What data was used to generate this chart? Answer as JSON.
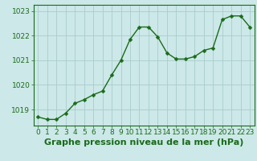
{
  "x": [
    0,
    1,
    2,
    3,
    4,
    5,
    6,
    7,
    8,
    9,
    10,
    11,
    12,
    13,
    14,
    15,
    16,
    17,
    18,
    19,
    20,
    21,
    22,
    23
  ],
  "y": [
    1018.7,
    1018.6,
    1018.6,
    1018.85,
    1019.25,
    1019.4,
    1019.6,
    1019.75,
    1020.4,
    1021.0,
    1021.85,
    1022.35,
    1022.35,
    1021.95,
    1021.3,
    1021.05,
    1021.05,
    1021.15,
    1021.4,
    1021.5,
    1022.65,
    1022.8,
    1022.8,
    1022.35
  ],
  "line_color": "#1a6b1a",
  "marker_color": "#1a6b1a",
  "bg_color": "#cce8e8",
  "grid_color": "#aacccc",
  "axis_color": "#1a6b1a",
  "ylabel_ticks": [
    1019,
    1020,
    1021,
    1022,
    1023
  ],
  "xlabel_ticks": [
    0,
    1,
    2,
    3,
    4,
    5,
    6,
    7,
    8,
    9,
    10,
    11,
    12,
    13,
    14,
    15,
    16,
    17,
    18,
    19,
    20,
    21,
    22,
    23
  ],
  "ylim": [
    1018.35,
    1023.25
  ],
  "xlim": [
    -0.5,
    23.5
  ],
  "xlabel": "Graphe pression niveau de la mer (hPa)",
  "tick_fontsize": 6.5,
  "label_fontsize": 8,
  "marker_size": 2.5,
  "line_width": 1.0
}
